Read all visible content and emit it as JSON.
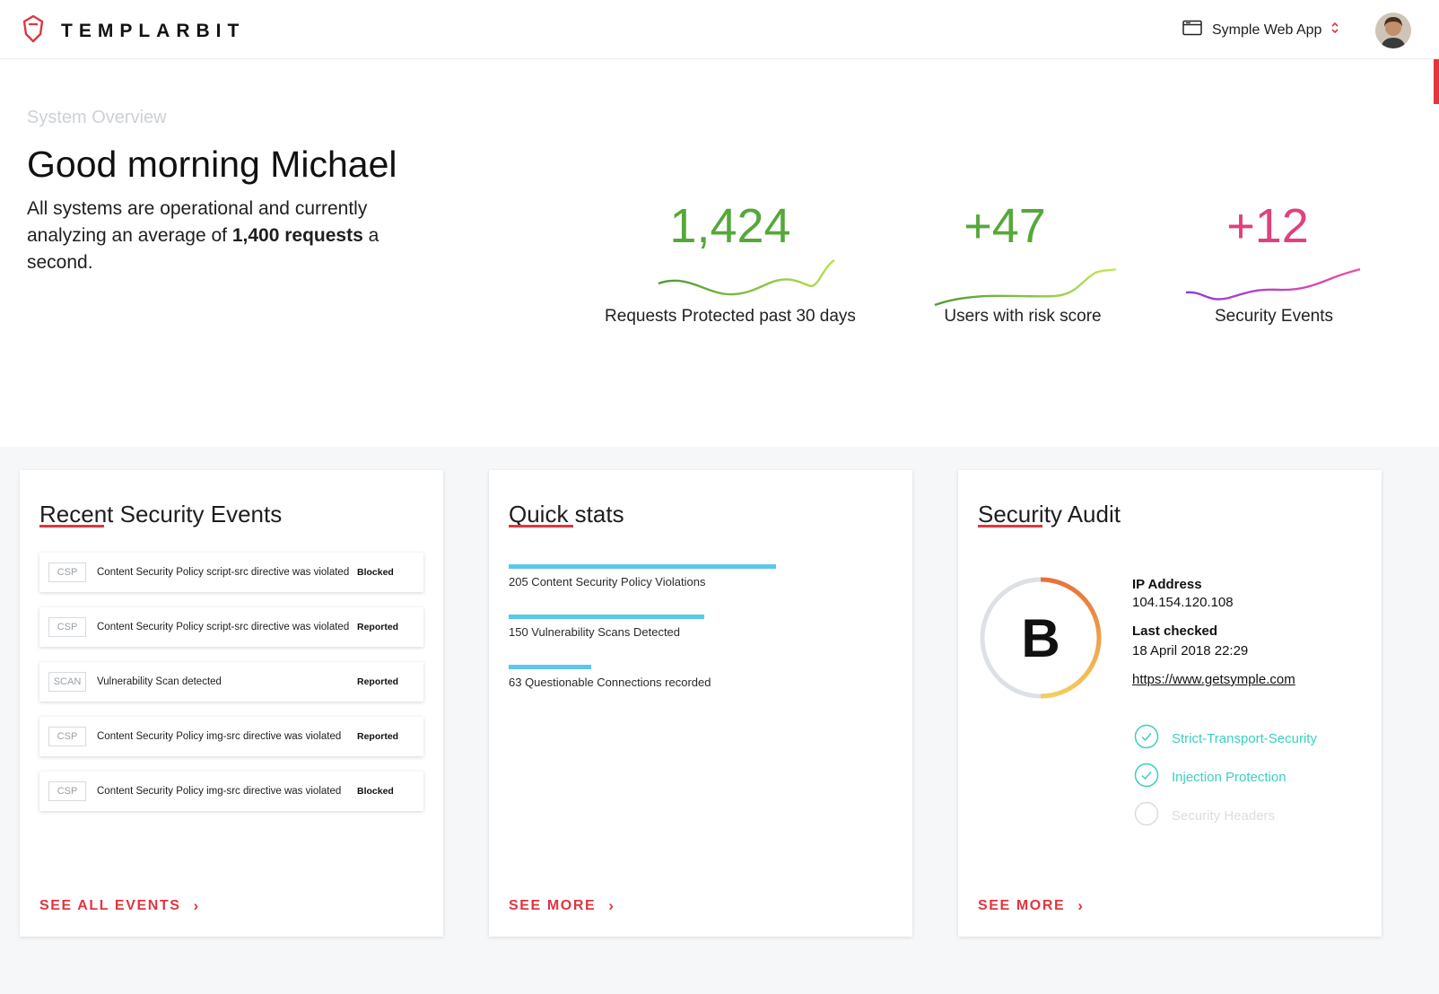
{
  "header": {
    "brand": "TEMPLARBIT",
    "app_name": "Symple Web App"
  },
  "hero": {
    "eyebrow": "System Overview",
    "greeting": "Good morning Michael",
    "summary_pre": "All systems are operational and currently analyzing an average of",
    "summary_bold": "1,400 requests",
    "summary_post": "a second."
  },
  "metrics": [
    {
      "value": "1,424",
      "label": "Requests Protected past 30 days",
      "color": "#55a83a"
    },
    {
      "value": "+47",
      "label": "Users with risk score",
      "color": "#55a83a"
    },
    {
      "value": "+12",
      "label": "Security Events",
      "color": "#e0407e"
    }
  ],
  "events_card": {
    "title": "Recent Security Events",
    "link": "SEE ALL EVENTS",
    "items": [
      {
        "tag": "CSP",
        "text": "Content Security Policy script-src directive was violated",
        "status": "Blocked"
      },
      {
        "tag": "CSP",
        "text": "Content Security Policy script-src directive was violated",
        "status": "Reported"
      },
      {
        "tag": "SCAN",
        "text": "Vulnerability Scan detected",
        "status": "Reported"
      },
      {
        "tag": "CSP",
        "text": "Content Security Policy img-src directive was violated",
        "status": "Reported"
      },
      {
        "tag": "CSP",
        "text": "Content Security Policy img-src directive was violated",
        "status": "Blocked"
      }
    ]
  },
  "stats_card": {
    "title": "Quick stats",
    "link": "SEE MORE",
    "items": [
      {
        "count": 205,
        "label": "205 Content Security Policy Violations"
      },
      {
        "count": 150,
        "label": "150 Vulnerability Scans Detected"
      },
      {
        "count": 63,
        "label": "63 Questionable Connections recorded"
      }
    ]
  },
  "audit_card": {
    "title": "Security Audit",
    "link": "SEE MORE",
    "grade": "B",
    "ip_label": "IP Address",
    "ip_value": "104.154.120.108",
    "checked_label": "Last checked",
    "checked_value": "18 April 2018 22:29",
    "url": "https://www.getsymple.com",
    "checks": [
      {
        "label": "Strict-Transport-Security",
        "passed": true
      },
      {
        "label": "Injection Protection",
        "passed": true
      },
      {
        "label": "Security Headers",
        "passed": false
      }
    ],
    "check_color": "#3ccfc0",
    "pending_color": "#d9dde2"
  },
  "accent_color": "#e0363f"
}
